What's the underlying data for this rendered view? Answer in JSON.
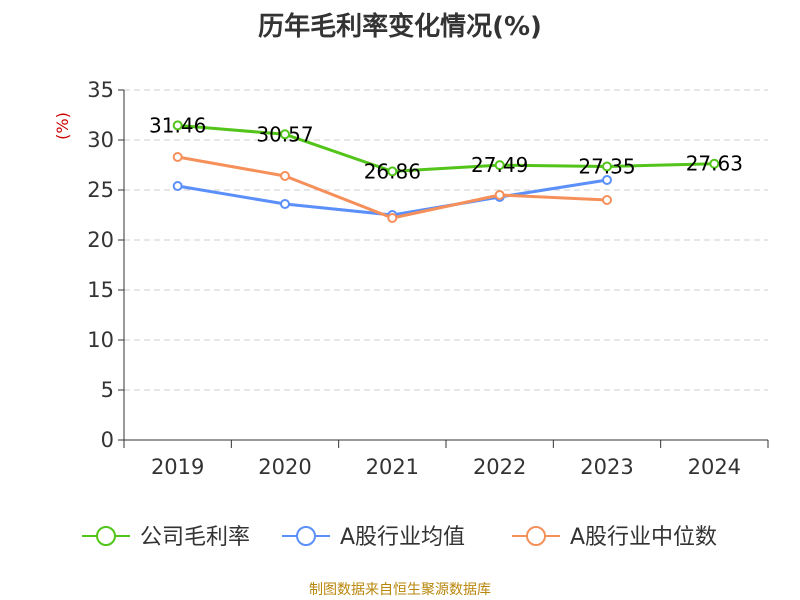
{
  "chart_data": {
    "type": "line",
    "title": "历年毛利率变化情况(%)",
    "ylabel": "(%)",
    "xlabel": "",
    "categories": [
      "2019",
      "2020",
      "2021",
      "2022",
      "2023",
      "2024"
    ],
    "y_ticks": [
      0,
      5,
      10,
      15,
      20,
      25,
      30,
      35
    ],
    "ylim": [
      0,
      35
    ],
    "grid": "horizontal-dashed",
    "legend_position": "bottom",
    "series": [
      {
        "name": "公司毛利率",
        "color": "#52c41a",
        "values": [
          31.46,
          30.57,
          26.86,
          27.49,
          27.35,
          27.63
        ],
        "data_labels": [
          "31.46",
          "30.57",
          "26.86",
          "27.49",
          "27.35",
          "27.63"
        ]
      },
      {
        "name": "A股行业均值",
        "color": "#5b8ff9",
        "values": [
          25.4,
          23.6,
          22.5,
          24.3,
          26.0,
          null
        ]
      },
      {
        "name": "A股行业中位数",
        "color": "#f6905a",
        "values": [
          28.3,
          26.4,
          22.2,
          24.5,
          24.0,
          null
        ]
      }
    ]
  },
  "source_note": "制图数据来自恒生聚源数据库"
}
